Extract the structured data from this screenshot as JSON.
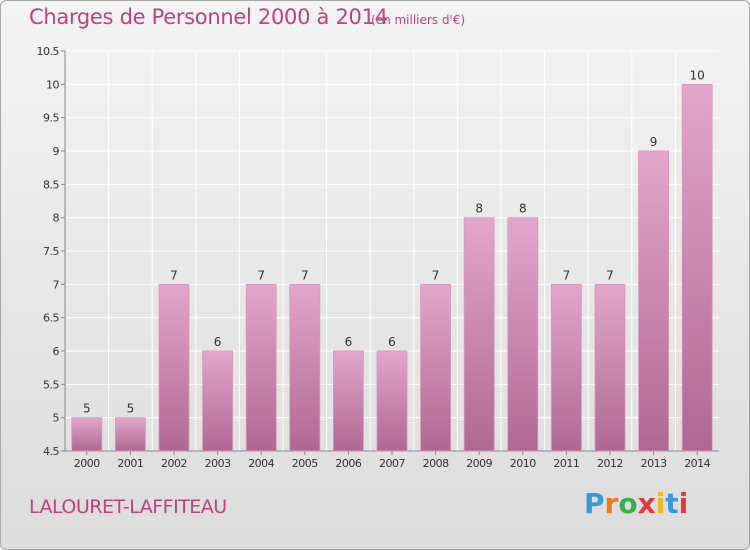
{
  "page": {
    "title": "Charges de Personnel 2000 à 2014",
    "subtitle": "(en milliers d'€)",
    "commune": "LALOURET-LAFFITEAU",
    "logo_text": "Proxiti",
    "logo_colors": [
      "#3a9ad9",
      "#f07a1a",
      "#3ab04a",
      "#e23a3a",
      "#f0b61a",
      "#3a9ad9",
      "#e23a3a"
    ]
  },
  "colors": {
    "title": "#c24080",
    "bar_top": "#e3a6cb",
    "bar_bottom": "#b06892",
    "grid": "#ffffff",
    "axis_text": "#333333"
  },
  "chart_data": {
    "type": "bar",
    "categories": [
      "2000",
      "2001",
      "2002",
      "2003",
      "2004",
      "2005",
      "2006",
      "2007",
      "2008",
      "2009",
      "2010",
      "2011",
      "2012",
      "2013",
      "2014"
    ],
    "values": [
      5,
      5,
      7,
      6,
      7,
      7,
      6,
      6,
      7,
      8,
      8,
      7,
      7,
      9,
      10
    ],
    "data_labels": [
      "5",
      "5",
      "7",
      "6",
      "7",
      "7",
      "6",
      "6",
      "7",
      "8",
      "8",
      "7",
      "7",
      "9",
      "10"
    ],
    "ylim": [
      4.5,
      10.5
    ],
    "yticks": [
      4.5,
      5,
      5.5,
      6,
      6.5,
      7,
      7.5,
      8,
      8.5,
      9,
      9.5,
      10,
      10.5
    ],
    "ytick_labels": [
      "4.5",
      "5",
      "5.5",
      "6",
      "6.5",
      "7",
      "7.5",
      "8",
      "8.5",
      "9",
      "9.5",
      "10",
      "10.5"
    ],
    "grid": true,
    "legend": "none",
    "title": "Charges de Personnel 2000 à 2014",
    "xlabel": "",
    "ylabel": ""
  }
}
